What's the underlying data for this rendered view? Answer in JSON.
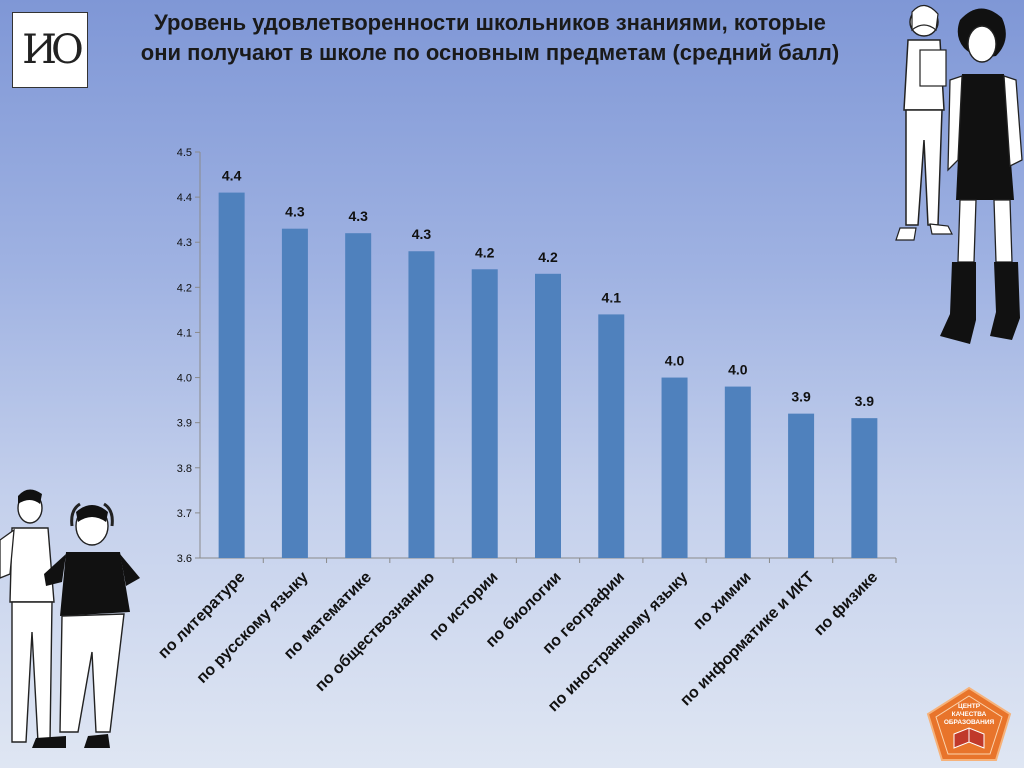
{
  "logo": {
    "text": "ИО"
  },
  "title": "Уровень удовлетворенности школьников знаниями, которые они получают в школе по основным предметам (средний балл)",
  "quality_logo_text": [
    "ЦЕНТР",
    "КАЧЕСТВА",
    "ОБРАЗОВАНИЯ"
  ],
  "colors": {
    "bar": "#4f81bd",
    "axis": "#8a8a8a",
    "label": "#111111"
  },
  "chart_data": {
    "type": "bar",
    "categories": [
      "по литературе",
      "по русскому языку",
      "по математике",
      "по обществознанию",
      "по истории",
      "по биологии",
      "по географии",
      "по иностранному языку",
      "по химии",
      "по информатике и ИКТ",
      "по физике"
    ],
    "values": [
      4.41,
      4.33,
      4.32,
      4.28,
      4.24,
      4.23,
      4.14,
      4.0,
      3.98,
      3.92,
      3.91
    ],
    "data_labels": [
      "4.4",
      "4.3",
      "4.3",
      "4.3",
      "4.2",
      "4.2",
      "4.1",
      "4.0",
      "4.0",
      "3.9",
      "3.9"
    ],
    "ylim": [
      3.6,
      4.5
    ],
    "yticks": [
      "3.6",
      "3.7",
      "3.8",
      "3.9",
      "4.0",
      "4.1",
      "4.2",
      "4.3",
      "4.4",
      "4.5"
    ],
    "xlabel": "",
    "ylabel": "",
    "grid": false,
    "legend": "none"
  }
}
